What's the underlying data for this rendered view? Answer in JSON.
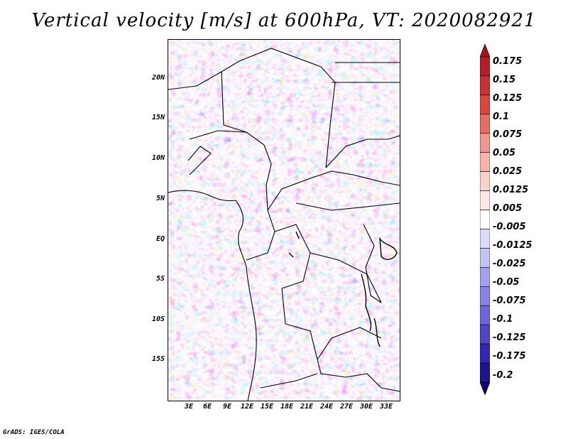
{
  "title": "Vertical velocity [m/s] at 600hPa, VT: 2020082921",
  "credit": "GrADS: IGES/COLA",
  "map": {
    "region": "Central Africa",
    "lon_range": [
      0,
      35
    ],
    "lat_range": [
      -20,
      25
    ],
    "lat_labels": [
      {
        "value": 20,
        "text": "20N"
      },
      {
        "value": 15,
        "text": "15N"
      },
      {
        "value": 10,
        "text": "10N"
      },
      {
        "value": 5,
        "text": "5N"
      },
      {
        "value": 0,
        "text": "EQ"
      },
      {
        "value": -5,
        "text": "5S"
      },
      {
        "value": -10,
        "text": "10S"
      },
      {
        "value": -15,
        "text": "15S"
      }
    ],
    "lon_labels": [
      {
        "value": 3,
        "text": "3E"
      },
      {
        "value": 6,
        "text": "6E"
      },
      {
        "value": 9,
        "text": "9E"
      },
      {
        "value": 12,
        "text": "12E"
      },
      {
        "value": 15,
        "text": "15E"
      },
      {
        "value": 18,
        "text": "18E"
      },
      {
        "value": 21,
        "text": "21E"
      },
      {
        "value": 24,
        "text": "24E"
      },
      {
        "value": 27,
        "text": "27E"
      },
      {
        "value": 30,
        "text": "30E"
      },
      {
        "value": 33,
        "text": "33E"
      }
    ]
  },
  "colorbar": {
    "labels": [
      "0.175",
      "0.15",
      "0.125",
      "0.1",
      "0.075",
      "0.05",
      "0.025",
      "0.0125",
      "0.005",
      "-0.005",
      "-0.0125",
      "-0.025",
      "-0.05",
      "-0.075",
      "-0.1",
      "-0.125",
      "-0.175",
      "-0.2"
    ],
    "colors": [
      "#a0141e",
      "#b41e28",
      "#c83232",
      "#dc463c",
      "#e66e64",
      "#f0968c",
      "#f5b4aa",
      "#fad2cd",
      "#fde8e6",
      "#ffffff",
      "#dcdcfa",
      "#c3c3f5",
      "#a5a0f0",
      "#8c82e6",
      "#6e64dc",
      "#5046c8",
      "#3228b4",
      "#1e148c",
      "#14006e"
    ]
  }
}
